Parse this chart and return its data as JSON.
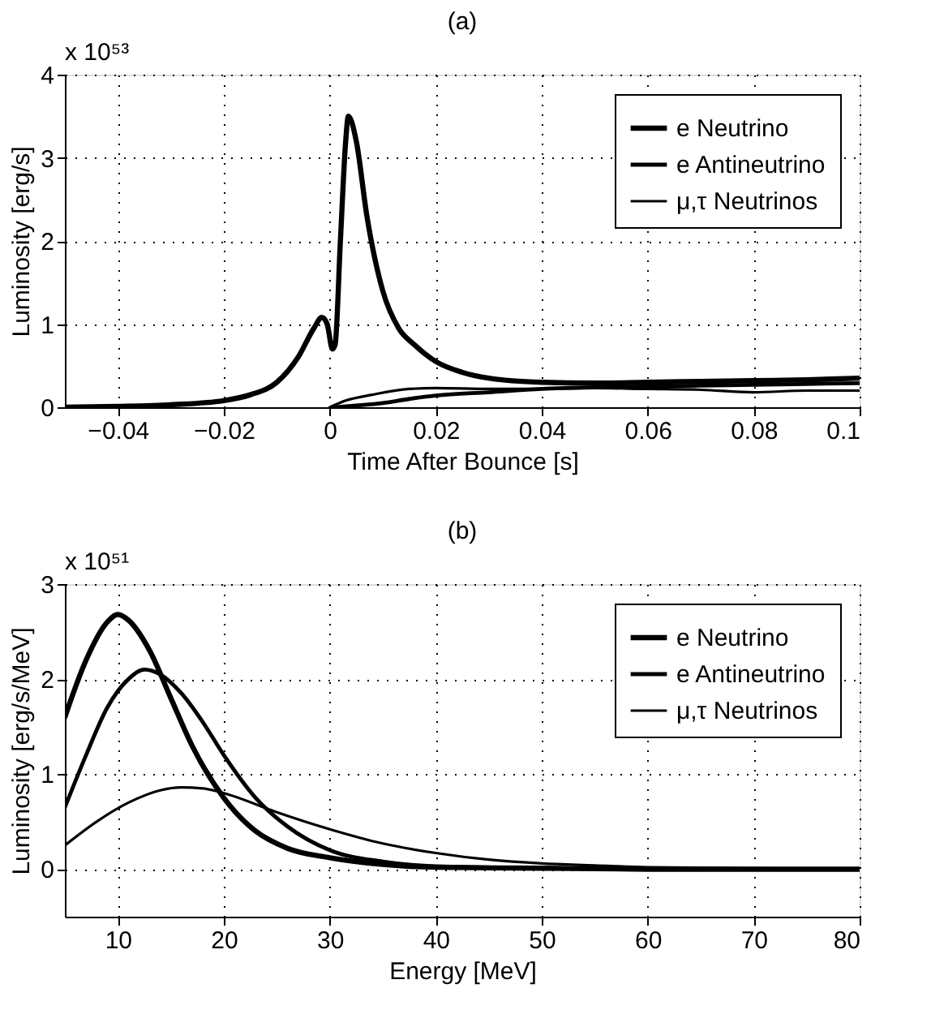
{
  "chart_data": [
    {
      "type": "line",
      "title": "(a)",
      "xlabel": "Time After Bounce [s]",
      "ylabel": "Luminosity [erg/s]",
      "annotations": [
        "x 10⁵³"
      ],
      "xlim": [
        -0.05,
        0.1
      ],
      "xticks": [
        -0.04,
        -0.02,
        0,
        0.02,
        0.04,
        0.06,
        0.08,
        0.1
      ],
      "ylim": [
        0,
        4
      ],
      "yticks": [
        0,
        1,
        2,
        3,
        4
      ],
      "grid": true,
      "legend": "top right",
      "line_style": "solid",
      "series": [
        {
          "name": "e Neutrino",
          "color": "#000000",
          "x": [
            -0.05,
            -0.04,
            -0.03,
            -0.02,
            -0.015,
            -0.01,
            -0.006,
            -0.003,
            -0.0015,
            -0.0005,
            0.0005,
            0.001,
            0.002,
            0.003,
            0.0035,
            0.005,
            0.007,
            0.01,
            0.013,
            0.016,
            0.02,
            0.025,
            0.03,
            0.04,
            0.05,
            0.06,
            0.07,
            0.08,
            0.09,
            0.1
          ],
          "values": [
            0.0,
            0.01,
            0.03,
            0.08,
            0.15,
            0.3,
            0.6,
            0.95,
            1.08,
            1.0,
            0.7,
            0.75,
            2.0,
            3.2,
            3.5,
            3.2,
            2.3,
            1.4,
            0.95,
            0.75,
            0.55,
            0.42,
            0.35,
            0.3,
            0.29,
            0.3,
            0.31,
            0.32,
            0.33,
            0.35
          ]
        },
        {
          "name": "e Antineutrino",
          "color": "#000000",
          "x": [
            0.001,
            0.005,
            0.01,
            0.015,
            0.02,
            0.03,
            0.04,
            0.05,
            0.06,
            0.07,
            0.08,
            0.09,
            0.1
          ],
          "values": [
            0.0,
            0.02,
            0.05,
            0.1,
            0.14,
            0.18,
            0.22,
            0.24,
            0.25,
            0.26,
            0.27,
            0.28,
            0.29
          ]
        },
        {
          "name": "μ,τ Neutrinos",
          "color": "#000000",
          "x": [
            0.0,
            0.003,
            0.008,
            0.015,
            0.02,
            0.03,
            0.04,
            0.05,
            0.06,
            0.07,
            0.08,
            0.09,
            0.1
          ],
          "values": [
            0.0,
            0.08,
            0.15,
            0.22,
            0.23,
            0.22,
            0.22,
            0.23,
            0.22,
            0.21,
            0.18,
            0.2,
            0.2
          ]
        }
      ]
    },
    {
      "type": "line",
      "title": "(b)",
      "xlabel": "Energy [MeV]",
      "ylabel": "Luminosity [erg/s/MeV]",
      "annotations": [
        "x 10⁵¹"
      ],
      "xlim": [
        5,
        80
      ],
      "xticks": [
        10,
        20,
        30,
        40,
        50,
        60,
        70,
        80
      ],
      "ylim": [
        -0.5,
        3
      ],
      "yticks": [
        0,
        1,
        2,
        3
      ],
      "grid": true,
      "legend": "top right",
      "line_style": "solid",
      "series": [
        {
          "name": "e Neutrino",
          "color": "#000000",
          "x": [
            5,
            7,
            9,
            10,
            11,
            13,
            15,
            17,
            20,
            23,
            26,
            30,
            35,
            40,
            50,
            60,
            80
          ],
          "values": [
            1.6,
            2.2,
            2.6,
            2.68,
            2.62,
            2.3,
            1.8,
            1.3,
            0.75,
            0.4,
            0.22,
            0.12,
            0.05,
            0.02,
            0.01,
            0,
            0
          ]
        },
        {
          "name": "e Antineutrino",
          "color": "#000000",
          "x": [
            5,
            7,
            9,
            11,
            12.5,
            14,
            16,
            18,
            20,
            23,
            26,
            30,
            35,
            40,
            50,
            60,
            80
          ],
          "values": [
            0.65,
            1.2,
            1.7,
            2.0,
            2.1,
            2.05,
            1.85,
            1.55,
            1.2,
            0.75,
            0.45,
            0.2,
            0.08,
            0.03,
            0.01,
            0,
            0
          ]
        },
        {
          "name": "μ,τ Neutrinos",
          "color": "#000000",
          "x": [
            5,
            8,
            11,
            14,
            16,
            18,
            20,
            25,
            30,
            35,
            40,
            45,
            50,
            55,
            60,
            70,
            80
          ],
          "values": [
            0.25,
            0.5,
            0.7,
            0.83,
            0.86,
            0.85,
            0.8,
            0.6,
            0.42,
            0.27,
            0.17,
            0.1,
            0.06,
            0.04,
            0.02,
            0.01,
            0
          ]
        }
      ]
    }
  ]
}
